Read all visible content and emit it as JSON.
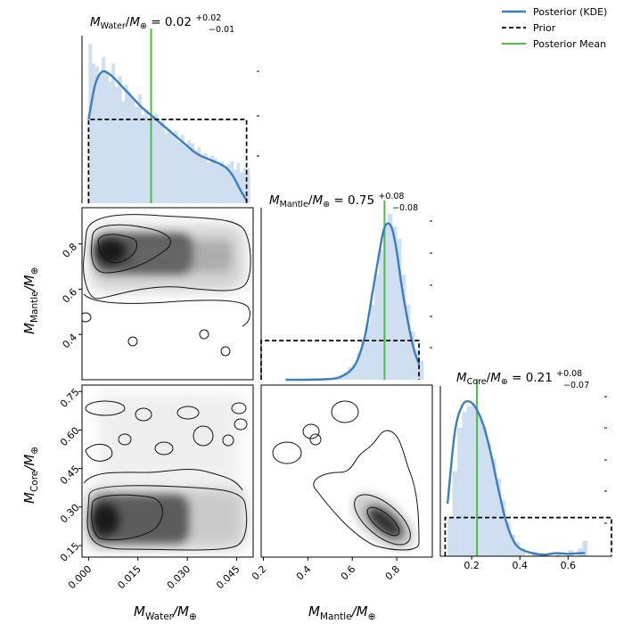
{
  "chart_data": {
    "type": "corner",
    "parameters": [
      "M_Water",
      "M_Mantle",
      "M_Core"
    ],
    "legend": {
      "placement": "top-right",
      "entries": [
        {
          "label": "Posterior (KDE)",
          "style": "solid",
          "color": "#3a7ebf"
        },
        {
          "label": "Prior",
          "style": "dashed",
          "color": "#000000"
        },
        {
          "label": "Posterior Mean",
          "style": "solid",
          "color": "#4cbb47"
        }
      ]
    },
    "titles": [
      {
        "param": "M_Water",
        "name": "Water",
        "value": "0.02",
        "plus": "+0.02",
        "minus": "−0.01"
      },
      {
        "param": "M_Mantle",
        "name": "Mantle",
        "value": "0.75",
        "plus": "+0.08",
        "minus": "−0.08"
      },
      {
        "param": "M_Core",
        "name": "Core",
        "value": "0.21",
        "plus": "+0.08",
        "minus": "−0.07"
      }
    ],
    "axis_labels": {
      "x_water": {
        "base": "M",
        "sub": "Water",
        "tail": "/M",
        "tailsub": "⊕"
      },
      "x_mantle": {
        "base": "M",
        "sub": "Mantle",
        "tail": "/M",
        "tailsub": "⊕"
      },
      "y_mantle": {
        "base": "M",
        "sub": "Mantle",
        "tail": "/M",
        "tailsub": "⊕"
      },
      "y_core": {
        "base": "M",
        "sub": "Core",
        "tail": "/M",
        "tailsub": "⊕"
      }
    },
    "axes": {
      "water": {
        "range": [
          -0.002,
          0.05
        ],
        "ticks": [
          0.0,
          0.015,
          0.03,
          0.045
        ],
        "tick_labels": [
          "0.000",
          "0.015",
          "0.030",
          "0.045"
        ]
      },
      "mantle_x": {
        "range": [
          0.19,
          0.96
        ],
        "ticks": [
          0.2,
          0.4,
          0.6,
          0.8
        ],
        "tick_labels": [
          "0.2",
          "0.4",
          "0.6",
          "0.8"
        ]
      },
      "mantle_y": {
        "range": [
          0.2,
          0.96
        ],
        "ticks": [
          0.4,
          0.6,
          0.8
        ],
        "tick_labels": [
          "0.4",
          "0.6",
          "0.8"
        ]
      },
      "core_y": {
        "range": [
          0.105,
          0.775
        ],
        "ticks": [
          0.15,
          0.3,
          0.45,
          0.6,
          0.75
        ],
        "tick_labels": [
          "0.15",
          "0.30",
          "0.45",
          "0.60",
          "0.75"
        ]
      },
      "core_x": {
        "range": [
          0.07,
          0.78
        ],
        "ticks": [
          0.2,
          0.4,
          0.6
        ],
        "tick_labels": [
          "0.2",
          "0.4",
          "0.6"
        ]
      }
    },
    "diagonal": {
      "water": {
        "kde_x": [
          0.0,
          0.002,
          0.004,
          0.006,
          0.008,
          0.01,
          0.012,
          0.014,
          0.016,
          0.018,
          0.02,
          0.022,
          0.024,
          0.026,
          0.028,
          0.03,
          0.032,
          0.034,
          0.036,
          0.038,
          0.04,
          0.042,
          0.044,
          0.046,
          0.048
        ],
        "kde_y": [
          0.6,
          0.85,
          0.94,
          0.93,
          0.89,
          0.84,
          0.79,
          0.74,
          0.69,
          0.65,
          0.61,
          0.57,
          0.53,
          0.49,
          0.45,
          0.41,
          0.37,
          0.34,
          0.32,
          0.3,
          0.28,
          0.25,
          0.19,
          0.1,
          0.02
        ],
        "hist_x": [
          0.0,
          0.001,
          0.002,
          0.003,
          0.004,
          0.005,
          0.006,
          0.007,
          0.008,
          0.009,
          0.01,
          0.011,
          0.012,
          0.013,
          0.014,
          0.015,
          0.016,
          0.017,
          0.018,
          0.019,
          0.02,
          0.021,
          0.022,
          0.023,
          0.024,
          0.025,
          0.026,
          0.027,
          0.028,
          0.029,
          0.03,
          0.031,
          0.032,
          0.033,
          0.034,
          0.035,
          0.036,
          0.037,
          0.038,
          0.039,
          0.04,
          0.041,
          0.042,
          0.043,
          0.044,
          0.045,
          0.046,
          0.047,
          0.048
        ],
        "hist_y": [
          1.14,
          1.0,
          0.98,
          0.92,
          1.05,
          0.95,
          0.87,
          1.0,
          0.83,
          0.91,
          0.73,
          0.85,
          0.8,
          0.74,
          0.69,
          0.78,
          0.63,
          0.67,
          0.6,
          0.61,
          0.64,
          0.57,
          0.59,
          0.5,
          0.53,
          0.5,
          0.52,
          0.44,
          0.49,
          0.41,
          0.45,
          0.43,
          0.38,
          0.4,
          0.33,
          0.36,
          0.29,
          0.34,
          0.32,
          0.27,
          0.3,
          0.26,
          0.28,
          0.3,
          0.24,
          0.29,
          0.22,
          0.25,
          0.25
        ],
        "prior": [
          0.0,
          0.048,
          0.6
        ],
        "mean": 0.019,
        "ymax": 1.2
      },
      "mantle": {
        "kde_x": [
          0.3,
          0.4,
          0.5,
          0.55,
          0.6,
          0.63,
          0.66,
          0.69,
          0.72,
          0.74,
          0.76,
          0.78,
          0.8,
          0.82,
          0.84,
          0.86,
          0.88,
          0.9
        ],
        "kde_y": [
          0.0,
          0.0,
          0.005,
          0.02,
          0.07,
          0.15,
          0.3,
          0.55,
          0.8,
          0.95,
          1.0,
          0.96,
          0.82,
          0.62,
          0.45,
          0.3,
          0.18,
          0.1
        ],
        "hist_x": [
          0.52,
          0.54,
          0.56,
          0.58,
          0.6,
          0.62,
          0.64,
          0.66,
          0.68,
          0.7,
          0.72,
          0.74,
          0.76,
          0.78,
          0.8,
          0.82,
          0.84,
          0.86,
          0.88,
          0.9
        ],
        "hist_y": [
          0.02,
          0.03,
          0.05,
          0.08,
          0.1,
          0.17,
          0.25,
          0.35,
          0.48,
          0.67,
          0.83,
          0.98,
          1.06,
          0.98,
          0.9,
          0.67,
          0.48,
          0.31,
          0.19,
          0.12
        ],
        "prior": [
          0.19,
          0.9,
          0.25
        ],
        "mean": 0.745,
        "ymax": 1.1
      },
      "core": {
        "kde_x": [
          0.1,
          0.13,
          0.16,
          0.19,
          0.22,
          0.25,
          0.28,
          0.31,
          0.34,
          0.37,
          0.4,
          0.45,
          0.5,
          0.55,
          0.6,
          0.65,
          0.67
        ],
        "kde_y": [
          0.34,
          0.8,
          0.97,
          1.0,
          0.95,
          0.84,
          0.66,
          0.44,
          0.24,
          0.11,
          0.05,
          0.02,
          0.01,
          0.02,
          0.015,
          0.02,
          0.02
        ],
        "hist_x": [
          0.1,
          0.12,
          0.14,
          0.16,
          0.18,
          0.2,
          0.22,
          0.24,
          0.26,
          0.28,
          0.3,
          0.32,
          0.34,
          0.36,
          0.38,
          0.4,
          0.45,
          0.5,
          0.55,
          0.6,
          0.64,
          0.66
        ],
        "hist_y": [
          0.25,
          0.55,
          0.83,
          0.93,
          0.97,
          0.99,
          0.91,
          0.84,
          0.73,
          0.63,
          0.5,
          0.36,
          0.22,
          0.14,
          0.09,
          0.05,
          0.03,
          0.01,
          0.02,
          0.04,
          0.05,
          0.1
        ],
        "prior": [
          0.09,
          0.78,
          0.25
        ],
        "mean": 0.222,
        "ymax": 1.1
      }
    }
  }
}
